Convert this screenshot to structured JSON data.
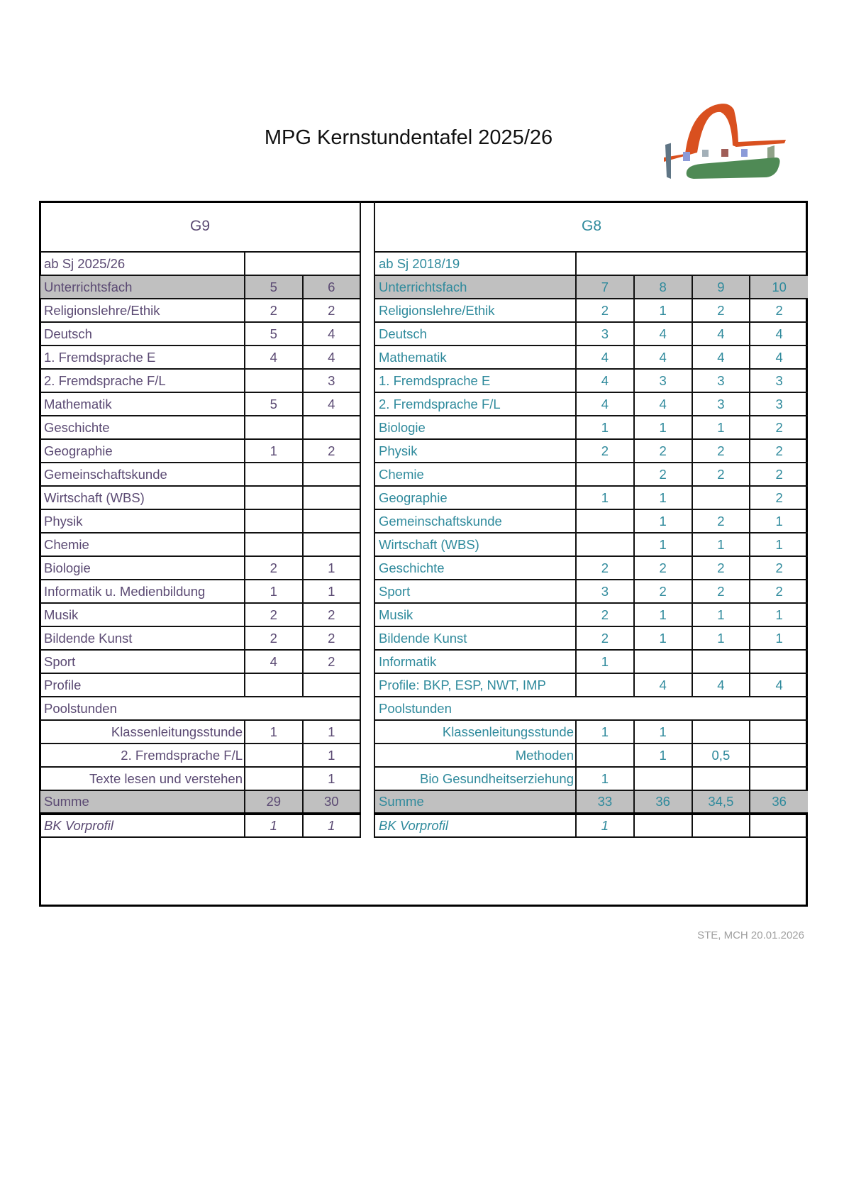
{
  "title": "MPG Kernstundentafel 2025/26",
  "footer": "STE, MCH 20.01.2026",
  "colors": {
    "g9_text": "#5b4a73",
    "g8_text": "#2f8a9c",
    "header_row_bg": "#c0c0c0"
  },
  "g9": {
    "title": "G9",
    "period": "ab Sj 2025/26",
    "header_label": "Unterrichtsfach",
    "columns": [
      "5",
      "6"
    ],
    "rows": [
      {
        "subject": "Religionslehre/Ethik",
        "values": [
          "2",
          "2"
        ]
      },
      {
        "subject": "Deutsch",
        "values": [
          "5",
          "4"
        ]
      },
      {
        "subject": "1. Fremdsprache  E",
        "values": [
          "4",
          "4"
        ]
      },
      {
        "subject": "2. Fremdsprache  F/L",
        "values": [
          "",
          "3"
        ]
      },
      {
        "subject": "Mathematik",
        "values": [
          "5",
          "4"
        ]
      },
      {
        "subject": "Geschichte",
        "values": [
          "",
          ""
        ]
      },
      {
        "subject": "Geographie",
        "values": [
          "1",
          "2"
        ]
      },
      {
        "subject": "Gemeinschaftskunde",
        "values": [
          "",
          ""
        ]
      },
      {
        "subject": "Wirtschaft (WBS)",
        "values": [
          "",
          ""
        ]
      },
      {
        "subject": "Physik",
        "values": [
          "",
          ""
        ]
      },
      {
        "subject": "Chemie",
        "values": [
          "",
          ""
        ]
      },
      {
        "subject": "Biologie",
        "values": [
          "2",
          "1"
        ]
      },
      {
        "subject": "Informatik u. Medienbildung",
        "values": [
          "1",
          "1"
        ]
      },
      {
        "subject": "Musik",
        "values": [
          "2",
          "2"
        ]
      },
      {
        "subject": "Bildende Kunst",
        "values": [
          "2",
          "2"
        ]
      },
      {
        "subject": "Sport",
        "values": [
          "4",
          "2"
        ]
      },
      {
        "subject": "Profile",
        "values": [
          "",
          ""
        ]
      }
    ],
    "pool_label": "Poolstunden",
    "pool_rows": [
      {
        "subject": "Klassenleitungsstunde",
        "values": [
          "1",
          "1"
        ]
      },
      {
        "subject": "2. Fremdsprache F/L",
        "values": [
          "",
          "1"
        ]
      },
      {
        "subject": "Texte lesen und verstehen",
        "values": [
          "",
          "1"
        ]
      }
    ],
    "sum": {
      "label": "Summe",
      "values": [
        "29",
        "30"
      ]
    },
    "bk": {
      "label": "BK Vorprofil",
      "values": [
        "1",
        "1"
      ]
    }
  },
  "g8": {
    "title": "G8",
    "period": "ab Sj 2018/19",
    "header_label": "Unterrichtsfach",
    "columns": [
      "7",
      "8",
      "9",
      "10"
    ],
    "rows": [
      {
        "subject": "Religionslehre/Ethik",
        "values": [
          "2",
          "1",
          "2",
          "2"
        ]
      },
      {
        "subject": "Deutsch",
        "values": [
          "3",
          "4",
          "4",
          "4"
        ]
      },
      {
        "subject": "Mathematik",
        "values": [
          "4",
          "4",
          "4",
          "4"
        ]
      },
      {
        "subject": "1. Fremdsprache  E",
        "values": [
          "4",
          "3",
          "3",
          "3"
        ]
      },
      {
        "subject": "2. Fremdsprache  F/L",
        "values": [
          "4",
          "4",
          "3",
          "3"
        ]
      },
      {
        "subject": "Biologie",
        "values": [
          "1",
          "1",
          "1",
          "2"
        ]
      },
      {
        "subject": "Physik",
        "values": [
          "2",
          "2",
          "2",
          "2"
        ]
      },
      {
        "subject": "Chemie",
        "values": [
          "",
          "2",
          "2",
          "2"
        ]
      },
      {
        "subject": "Geographie",
        "values": [
          "1",
          "1",
          "",
          "2"
        ]
      },
      {
        "subject": "Gemeinschaftskunde",
        "values": [
          "",
          "1",
          "2",
          "1"
        ]
      },
      {
        "subject": "Wirtschaft (WBS)",
        "values": [
          "",
          "1",
          "1",
          "1"
        ]
      },
      {
        "subject": "Geschichte",
        "values": [
          "2",
          "2",
          "2",
          "2"
        ]
      },
      {
        "subject": "Sport",
        "values": [
          "3",
          "2",
          "2",
          "2"
        ]
      },
      {
        "subject": "Musik",
        "values": [
          "2",
          "1",
          "1",
          "1"
        ]
      },
      {
        "subject": "Bildende Kunst",
        "values": [
          "2",
          "1",
          "1",
          "1"
        ]
      },
      {
        "subject": "Informatik",
        "values": [
          "1",
          "",
          "",
          ""
        ]
      },
      {
        "subject": "Profile: BKP, ESP, NWT, IMP",
        "values": [
          "",
          "4",
          "4",
          "4"
        ]
      }
    ],
    "pool_label": "Poolstunden",
    "pool_rows": [
      {
        "subject": "Klassenleitungsstunde",
        "values": [
          "1",
          "1",
          "",
          ""
        ]
      },
      {
        "subject": "Methoden",
        "values": [
          "",
          "1",
          "0,5",
          ""
        ]
      },
      {
        "subject": "Bio Gesundheitserziehung",
        "values": [
          "1",
          "",
          "",
          ""
        ]
      }
    ],
    "sum": {
      "label": "Summe",
      "values": [
        "33",
        "36",
        "34,5",
        "36"
      ]
    },
    "bk": {
      "label": "BK Vorprofil",
      "values": [
        "1",
        "",
        "",
        ""
      ]
    }
  }
}
